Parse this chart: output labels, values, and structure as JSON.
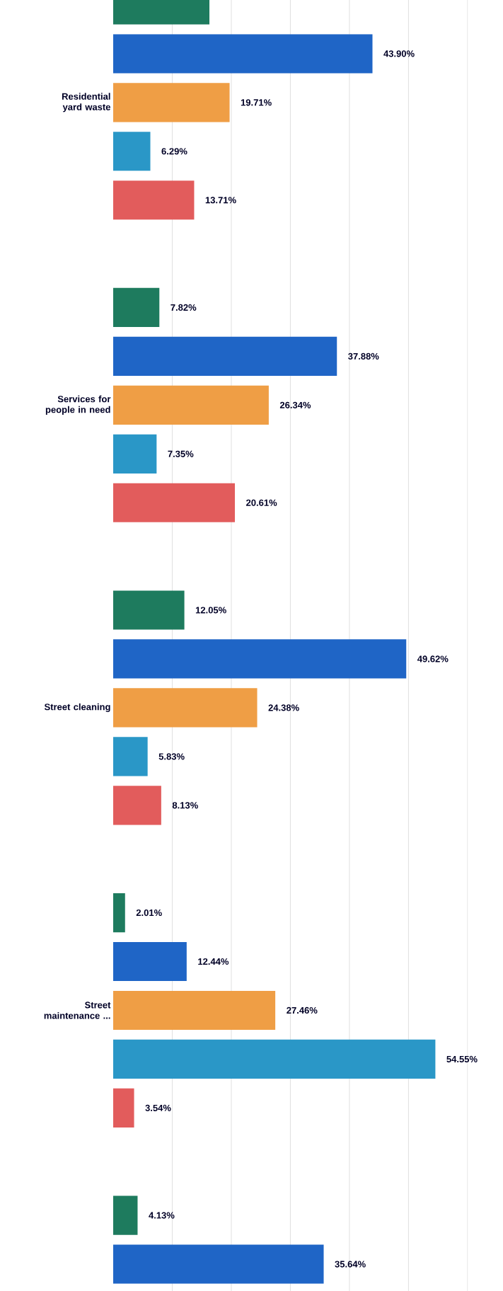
{
  "chart_data": {
    "type": "bar",
    "orientation": "horizontal",
    "categories": [
      "Residential yard waste",
      "Services for people in need",
      "Street cleaning",
      "Street maintenance ...",
      null
    ],
    "series": [
      {
        "color": "#1e7b5e",
        "values": [
          16.3,
          7.82,
          12.05,
          2.01,
          4.13
        ],
        "value_labels": [
          null,
          "7.82%",
          "12.05%",
          "2.01%",
          "4.13%"
        ]
      },
      {
        "color": "#1f65c6",
        "values": [
          43.9,
          37.88,
          49.62,
          12.44,
          35.64
        ],
        "value_labels": [
          "43.90%",
          "37.88%",
          "49.62%",
          "12.44%",
          "35.64%"
        ]
      },
      {
        "color": "#ef9e45",
        "values": [
          19.71,
          26.34,
          24.38,
          27.46,
          null
        ],
        "value_labels": [
          "19.71%",
          "26.34%",
          "24.38%",
          "27.46%",
          null
        ]
      },
      {
        "color": "#2a97c7",
        "values": [
          6.29,
          7.35,
          5.83,
          54.55,
          null
        ],
        "value_labels": [
          "6.29%",
          "7.35%",
          "5.83%",
          "54.55%",
          null
        ]
      },
      {
        "color": "#e25c5c",
        "values": [
          13.71,
          20.61,
          8.13,
          3.54,
          null
        ],
        "value_labels": [
          "13.71%",
          "20.61%",
          "8.13%",
          "3.54%",
          null
        ]
      }
    ],
    "xticks": [
      {
        "value": 10,
        "label": null
      },
      {
        "value": 20,
        "label": null
      },
      {
        "value": 30,
        "label": null
      },
      {
        "value": 40,
        "label": null
      },
      {
        "value": 50,
        "label": null
      },
      {
        "value": 60,
        "label": null
      }
    ],
    "grid": "x",
    "tick_labels": false
  }
}
